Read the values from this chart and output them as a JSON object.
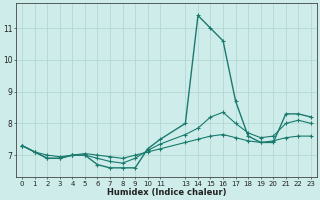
{
  "xlabel": "Humidex (Indice chaleur)",
  "x_values": [
    0,
    1,
    2,
    3,
    4,
    5,
    6,
    7,
    8,
    9,
    10,
    11,
    13,
    14,
    15,
    16,
    17,
    18,
    19,
    20,
    21,
    22,
    23
  ],
  "series": [
    [
      7.3,
      7.1,
      6.9,
      6.9,
      7.0,
      7.0,
      6.7,
      6.6,
      6.6,
      6.6,
      7.2,
      7.5,
      8.0,
      11.4,
      11.0,
      10.6,
      8.7,
      7.6,
      7.4,
      7.4,
      8.3,
      8.3,
      8.2
    ],
    [
      7.3,
      7.1,
      7.0,
      6.95,
      7.0,
      7.05,
      7.0,
      6.95,
      6.9,
      7.0,
      7.1,
      7.2,
      7.4,
      7.5,
      7.6,
      7.65,
      7.55,
      7.45,
      7.4,
      7.45,
      7.55,
      7.6,
      7.6
    ],
    [
      7.3,
      7.1,
      6.9,
      6.9,
      7.0,
      7.0,
      6.9,
      6.8,
      6.75,
      6.9,
      7.15,
      7.35,
      7.65,
      7.85,
      8.2,
      8.35,
      8.0,
      7.7,
      7.55,
      7.6,
      8.0,
      8.1,
      8.0
    ]
  ],
  "line_color": "#1a7a6e",
  "bg_color": "#ceecea",
  "grid_color": "#aed4d0",
  "ylim": [
    6.3,
    11.8
  ],
  "yticks": [
    7,
    8,
    9,
    10,
    11
  ],
  "xtick_labels": [
    "0",
    "1",
    "2",
    "3",
    "4",
    "5",
    "6",
    "7",
    "8",
    "9",
    "10",
    "11",
    "13",
    "14",
    "15",
    "16",
    "17",
    "18",
    "19",
    "20",
    "21",
    "22",
    "23"
  ]
}
